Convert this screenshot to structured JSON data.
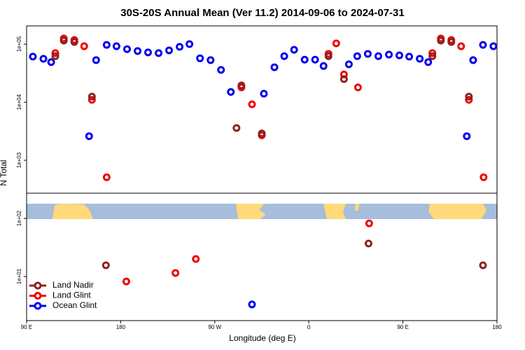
{
  "chart_data": {
    "type": "scatter",
    "title": "30S-20S Annual Mean (Ver 11.2)   2014-09-06 to 2024-07-31",
    "x_label": "Longitude (deg E)",
    "y_label": "N Total",
    "log_y": true,
    "legend": "bottom-left",
    "xlim": [
      90,
      540
    ],
    "xticks": [
      {
        "value": 90,
        "label": "90 E"
      },
      180,
      {
        "value": 270,
        "label": "90 W"
      },
      {
        "value": 360,
        "label": "0"
      },
      {
        "value": 450,
        "label": "90 E"
      },
      {
        "value": 540,
        "label": "180"
      }
    ],
    "ylim": [
      1.74,
      206000
    ],
    "yticks": [
      {
        "value": 10,
        "label": "1e+01"
      },
      {
        "value": 100,
        "label": "1e+02"
      },
      {
        "value": 1000,
        "label": "1e+03"
      },
      {
        "value": 10000,
        "label": "1e+04"
      },
      {
        "value": 100000,
        "label": "1e+05"
      }
    ],
    "series": [
      {
        "name": "Land Nadir",
        "color": "#8b2323",
        "x": [
          117.5,
          125.6,
          135.7,
          152.5,
          165.9,
          290.8,
          295.5,
          315.0,
          378.8,
          393.6,
          417.1,
          478.2,
          486.3,
          496.3,
          513.1,
          526.6
        ],
        "values": [
          62000,
          115000,
          109000,
          12500,
          15.6,
          3600,
          19500,
          2900,
          62000,
          25000,
          37,
          62000,
          115000,
          109000,
          12500,
          15.6
        ]
      },
      {
        "name": "Land Glint",
        "color": "#ee0000",
        "x": [
          117.5,
          125.6,
          135.7,
          145.1,
          152.5,
          166.6,
          185.4,
          232.4,
          251.9,
          295.5,
          305.6,
          315.0,
          378.8,
          386.2,
          393.6,
          407.0,
          417.7,
          478.2,
          486.3,
          496.3,
          505.7,
          513.1,
          527.2
        ],
        "values": [
          70000,
          125000,
          118000,
          92000,
          11000,
          510,
          8.2,
          11.5,
          20,
          18000,
          9200,
          2700,
          68000,
          103000,
          30000,
          18000,
          82,
          70000,
          125000,
          118000,
          92000,
          11000,
          510
        ]
      },
      {
        "name": "Ocean Glint",
        "color": "#0000ee",
        "x": [
          96.0,
          106.1,
          113.5,
          149.8,
          156.5,
          166.6,
          176.0,
          186.1,
          196.2,
          206.2,
          216.3,
          226.3,
          236.4,
          245.8,
          255.9,
          266.0,
          276.0,
          285.4,
          305.6,
          317.0,
          327.1,
          336.5,
          345.9,
          356.0,
          366.0,
          374.1,
          398.3,
          406.3,
          416.4,
          426.5,
          436.6,
          446.6,
          456.0,
          466.1,
          474.2,
          511.1,
          517.2,
          526.6,
          536.6
        ],
        "values": [
          61000,
          56000,
          49000,
          2600,
          53000,
          97000,
          92000,
          82000,
          76000,
          72000,
          70000,
          78000,
          90000,
          100000,
          57000,
          53000,
          36000,
          15000,
          3.3,
          14000,
          40000,
          62000,
          80000,
          54000,
          54000,
          42000,
          45000,
          62000,
          68000,
          62000,
          66000,
          64000,
          61000,
          56000,
          49000,
          2600,
          53000,
          97000,
          92000
        ]
      }
    ]
  }
}
